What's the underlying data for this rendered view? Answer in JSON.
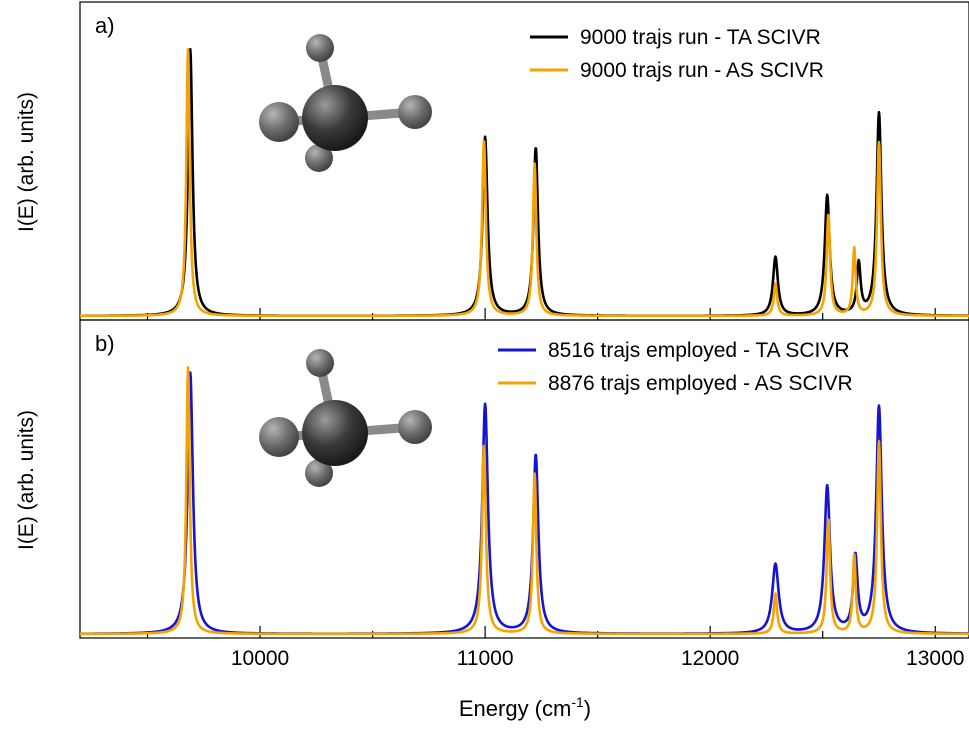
{
  "chart_data": [
    {
      "type": "line",
      "panel_label": "a)",
      "ylabel": "I(E) (arb. units)",
      "xlabel": "",
      "xlim": [
        9200,
        13150
      ],
      "ylim": [
        0,
        1.05
      ],
      "x_ticks": [
        9500,
        10000,
        10500,
        11000,
        11500,
        12000,
        12500,
        13000
      ],
      "grid": false,
      "legend_position": "top-right",
      "illustration": "methane-molecule",
      "series": [
        {
          "name": "9000 trajs run - TA SCIVR",
          "color": "#000000",
          "peaks": [
            {
              "x": 9690,
              "y": 1.0,
              "width": 12
            },
            {
              "x": 11000,
              "y": 0.67,
              "width": 13
            },
            {
              "x": 11225,
              "y": 0.63,
              "width": 12
            },
            {
              "x": 12290,
              "y": 0.22,
              "width": 13
            },
            {
              "x": 12520,
              "y": 0.45,
              "width": 13
            },
            {
              "x": 12660,
              "y": 0.19,
              "width": 10
            },
            {
              "x": 12750,
              "y": 0.76,
              "width": 13
            }
          ]
        },
        {
          "name": "9000 trajs run - AS SCIVR",
          "color": "#F5A300",
          "peaks": [
            {
              "x": 9680,
              "y": 1.0,
              "width": 9
            },
            {
              "x": 10995,
              "y": 0.66,
              "width": 10
            },
            {
              "x": 11220,
              "y": 0.57,
              "width": 9
            },
            {
              "x": 12290,
              "y": 0.12,
              "width": 9
            },
            {
              "x": 12525,
              "y": 0.38,
              "width": 9
            },
            {
              "x": 12640,
              "y": 0.25,
              "width": 8
            },
            {
              "x": 12750,
              "y": 0.65,
              "width": 10
            }
          ]
        }
      ]
    },
    {
      "type": "line",
      "panel_label": "b)",
      "ylabel": "I(E) (arb. units)",
      "xlabel": "Energy (cm",
      "xlabel_sup": "-1",
      "xlabel_end": ")",
      "xlim": [
        9200,
        13150
      ],
      "ylim": [
        0,
        1.05
      ],
      "x_ticks": [
        9500,
        10000,
        10500,
        11000,
        11500,
        12000,
        12500,
        13000
      ],
      "x_tick_labels": [
        "",
        "10000",
        "",
        "11000",
        "",
        "12000",
        "",
        "13000"
      ],
      "grid": false,
      "legend_position": "top-right",
      "illustration": "methane-molecule",
      "series": [
        {
          "name": "8516 trajs employed - TA SCIVR",
          "color": "#1414D2",
          "peaks": [
            {
              "x": 9690,
              "y": 0.98,
              "width": 14
            },
            {
              "x": 11000,
              "y": 0.86,
              "width": 15
            },
            {
              "x": 11225,
              "y": 0.67,
              "width": 14
            },
            {
              "x": 12290,
              "y": 0.26,
              "width": 17
            },
            {
              "x": 12520,
              "y": 0.55,
              "width": 15
            },
            {
              "x": 12645,
              "y": 0.28,
              "width": 12
            },
            {
              "x": 12750,
              "y": 0.85,
              "width": 15
            }
          ]
        },
        {
          "name": "8876 trajs employed - AS SCIVR",
          "color": "#F5A300",
          "peaks": [
            {
              "x": 9680,
              "y": 1.0,
              "width": 9
            },
            {
              "x": 10995,
              "y": 0.71,
              "width": 10
            },
            {
              "x": 11220,
              "y": 0.6,
              "width": 9
            },
            {
              "x": 12290,
              "y": 0.15,
              "width": 9
            },
            {
              "x": 12525,
              "y": 0.43,
              "width": 9
            },
            {
              "x": 12640,
              "y": 0.29,
              "width": 8
            },
            {
              "x": 12750,
              "y": 0.72,
              "width": 10
            }
          ]
        }
      ]
    }
  ]
}
